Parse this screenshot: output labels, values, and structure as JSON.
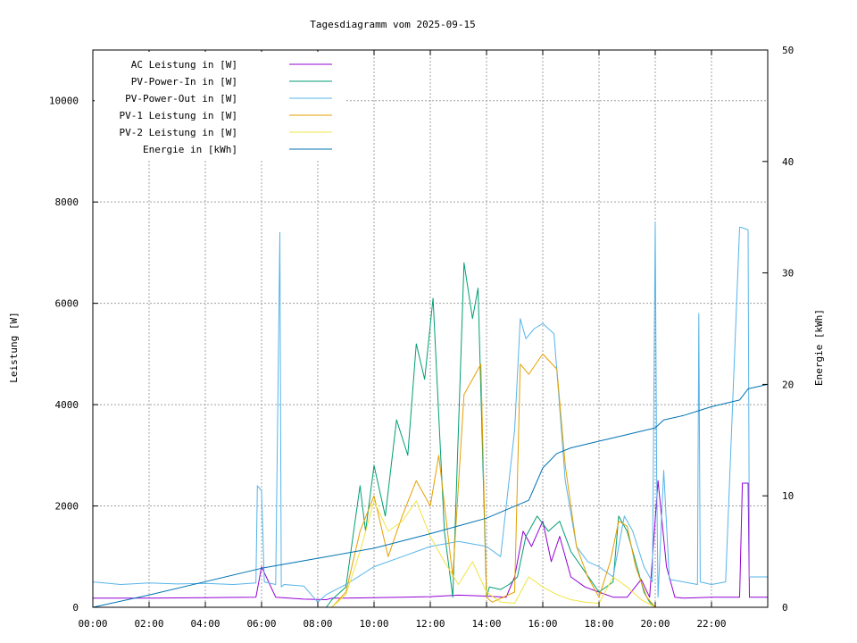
{
  "chart_data": {
    "type": "line",
    "title": "Tagesdiagramm vom 2025-09-15",
    "xlabel": "",
    "ylabel": "Leistung [W]",
    "y2label": "Energie [kWh]",
    "xlim": [
      0,
      24
    ],
    "ylim": [
      0,
      11000
    ],
    "y2lim": [
      0,
      50
    ],
    "x_ticks": [
      "00:00",
      "02:00",
      "04:00",
      "06:00",
      "08:00",
      "10:00",
      "12:00",
      "14:00",
      "16:00",
      "18:00",
      "20:00",
      "22:00"
    ],
    "y_ticks": [
      0,
      2000,
      4000,
      6000,
      8000,
      10000
    ],
    "y2_ticks": [
      0,
      10,
      20,
      30,
      40,
      50
    ],
    "grid": true,
    "legend_position": "top-left",
    "series": [
      {
        "name": "AC Leistung in [W]",
        "color": "#9400d3",
        "axis": "left",
        "x": [
          0,
          2,
          4,
          5.8,
          6.0,
          6.5,
          7.5,
          8.3,
          8.5,
          9,
          10,
          11,
          12,
          13,
          14,
          14.7,
          15,
          15.3,
          15.6,
          16,
          16.3,
          16.6,
          17,
          17.5,
          18,
          18.5,
          19,
          19.5,
          19.8,
          20.1,
          20.4,
          20.7,
          21,
          22,
          23,
          23.1,
          23.3,
          23.35,
          24
        ],
        "values": [
          180,
          180,
          190,
          200,
          800,
          200,
          160,
          150,
          180,
          180,
          190,
          200,
          210,
          240,
          220,
          200,
          600,
          1500,
          1200,
          1700,
          900,
          1400,
          600,
          400,
          300,
          200,
          200,
          550,
          200,
          2500,
          800,
          200,
          180,
          200,
          200,
          2450,
          2450,
          200,
          200
        ]
      },
      {
        "name": "PV-Power-In in [W]",
        "color": "#009e73",
        "axis": "left",
        "x": [
          0,
          6,
          8.3,
          8.5,
          9,
          9.5,
          9.7,
          10,
          10.4,
          10.8,
          11.2,
          11.5,
          11.8,
          12.1,
          12.5,
          12.8,
          13.2,
          13.5,
          13.7,
          14.0,
          14.1,
          14.5,
          14.8,
          15.1,
          15.4,
          15.8,
          16.2,
          16.6,
          17,
          17.5,
          18,
          18.5,
          18.7,
          19.0,
          19.3,
          19.6,
          19.8,
          20,
          24
        ],
        "values": [
          0,
          0,
          0,
          150,
          400,
          2400,
          1500,
          2800,
          1800,
          3700,
          3000,
          5200,
          4500,
          6100,
          1500,
          200,
          6800,
          5700,
          6300,
          200,
          400,
          350,
          450,
          600,
          1400,
          1800,
          1500,
          1700,
          1100,
          700,
          300,
          500,
          1800,
          1500,
          900,
          300,
          100,
          0,
          0
        ]
      },
      {
        "name": "PV-Power-Out in [W]",
        "color": "#56b4e9",
        "axis": "left",
        "x": [
          0,
          1,
          2,
          3,
          4,
          5,
          5.8,
          5.85,
          6.0,
          6.1,
          6.5,
          6.65,
          6.7,
          6.8,
          7.5,
          8.0,
          8.3,
          9,
          10,
          11,
          12,
          13,
          14,
          14.5,
          15.0,
          15.2,
          15.4,
          15.7,
          16.0,
          16.4,
          16.8,
          17.2,
          17.6,
          18,
          18.5,
          18.9,
          19.2,
          19.6,
          19.9,
          20.0,
          20.05,
          20.1,
          20.3,
          20.5,
          21,
          21.5,
          21.55,
          21.6,
          22,
          22.5,
          23.0,
          23.05,
          23.3,
          23.35,
          24
        ],
        "values": [
          500,
          450,
          480,
          460,
          470,
          450,
          480,
          2400,
          2300,
          500,
          450,
          7400,
          400,
          450,
          420,
          100,
          250,
          450,
          800,
          1000,
          1200,
          1300,
          1200,
          1000,
          3500,
          5700,
          5300,
          5500,
          5600,
          5400,
          2500,
          1200,
          900,
          800,
          600,
          1800,
          1500,
          800,
          500,
          7600,
          2600,
          200,
          2700,
          550,
          500,
          450,
          5800,
          500,
          450,
          500,
          7500,
          7500,
          7450,
          600,
          600
        ]
      },
      {
        "name": "PV-1 Leistung in [W]",
        "color": "#e69f00",
        "axis": "left",
        "x": [
          0,
          8.5,
          9,
          9.5,
          10,
          10.5,
          11,
          11.5,
          12,
          12.3,
          12.8,
          13.2,
          13.5,
          13.8,
          14.0,
          14.2,
          15.0,
          15.2,
          15.5,
          16.0,
          16.5,
          16.8,
          17.2,
          17.6,
          18,
          18.4,
          18.7,
          19.0,
          19.3,
          19.7,
          20,
          24
        ],
        "values": [
          0,
          0,
          300,
          1500,
          2200,
          1000,
          1800,
          2500,
          2000,
          3000,
          600,
          4200,
          4500,
          4800,
          200,
          100,
          300,
          4800,
          4600,
          5000,
          4700,
          2800,
          1200,
          600,
          200,
          900,
          1700,
          1600,
          800,
          200,
          0,
          0
        ]
      },
      {
        "name": "PV-2 Leistung in [W]",
        "color": "#f0e442",
        "axis": "left",
        "x": [
          0,
          8.5,
          9,
          9.5,
          10,
          10.5,
          11,
          11.5,
          12,
          12.5,
          13,
          13.5,
          14,
          14.5,
          15,
          15.5,
          16,
          16.5,
          17,
          17.5,
          18,
          18.5,
          19,
          19.5,
          20,
          24
        ],
        "values": [
          0,
          0,
          250,
          1100,
          2100,
          1500,
          1700,
          2100,
          1400,
          900,
          450,
          900,
          300,
          100,
          80,
          600,
          400,
          250,
          150,
          100,
          80,
          600,
          400,
          150,
          0,
          0
        ]
      },
      {
        "name": "Energie in [kWh]",
        "color": "#0072b2",
        "axis": "right",
        "x": [
          0,
          2,
          4,
          6,
          8,
          10,
          12,
          14,
          15.5,
          16,
          16.5,
          17,
          18,
          19,
          20,
          20.3,
          21,
          22,
          23,
          23.3,
          24
        ],
        "values": [
          0,
          1.1,
          2.3,
          3.5,
          4.4,
          5.3,
          6.6,
          8.0,
          9.6,
          12.5,
          13.8,
          14.3,
          14.9,
          15.5,
          16.1,
          16.8,
          17.2,
          18.0,
          18.6,
          19.6,
          20.0
        ]
      }
    ]
  }
}
